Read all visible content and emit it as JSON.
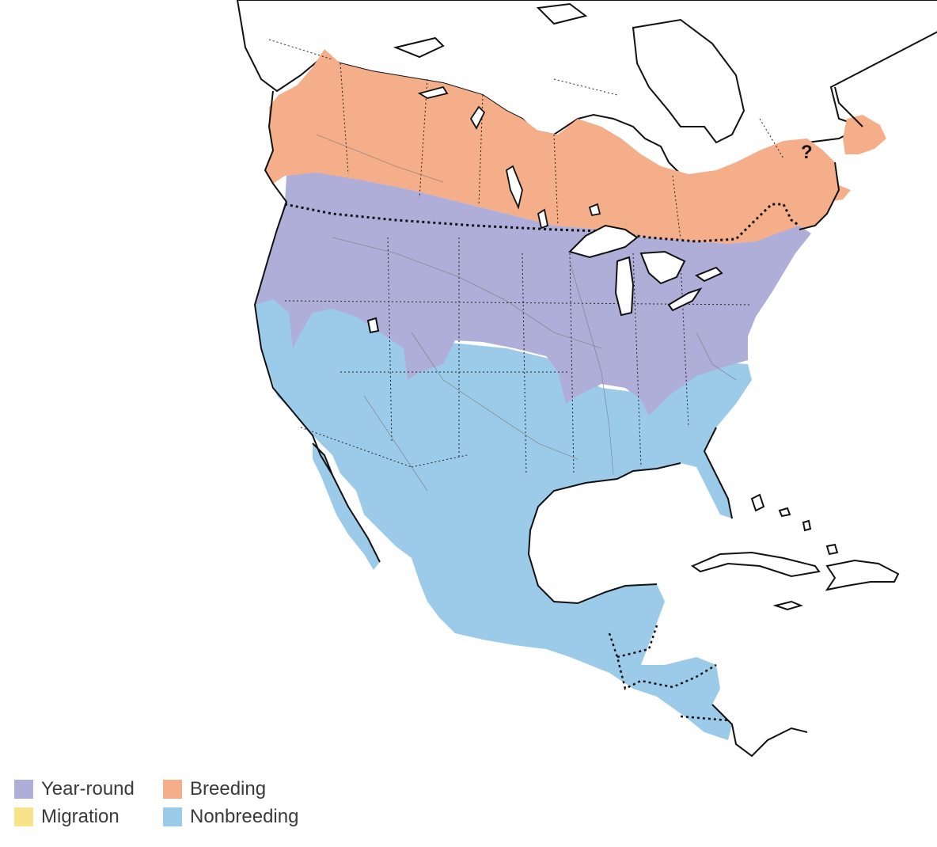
{
  "map": {
    "question_mark": "?",
    "colors": {
      "breeding": "#f4ae8a",
      "year_round": "#aeaed8",
      "nonbreeding": "#9ccbea",
      "migration": "#f7e48a",
      "land_outline": "#111111",
      "water": "#ffffff"
    }
  },
  "legend": {
    "items": [
      {
        "label": "Year-round",
        "color": "#aeaed8",
        "icon": "year-round-swatch"
      },
      {
        "label": "Breeding",
        "color": "#f4ae8a",
        "icon": "breeding-swatch"
      },
      {
        "label": "Migration",
        "color": "#f7e48a",
        "icon": "migration-swatch"
      },
      {
        "label": "Nonbreeding",
        "color": "#9ccbea",
        "icon": "nonbreeding-swatch"
      }
    ]
  }
}
